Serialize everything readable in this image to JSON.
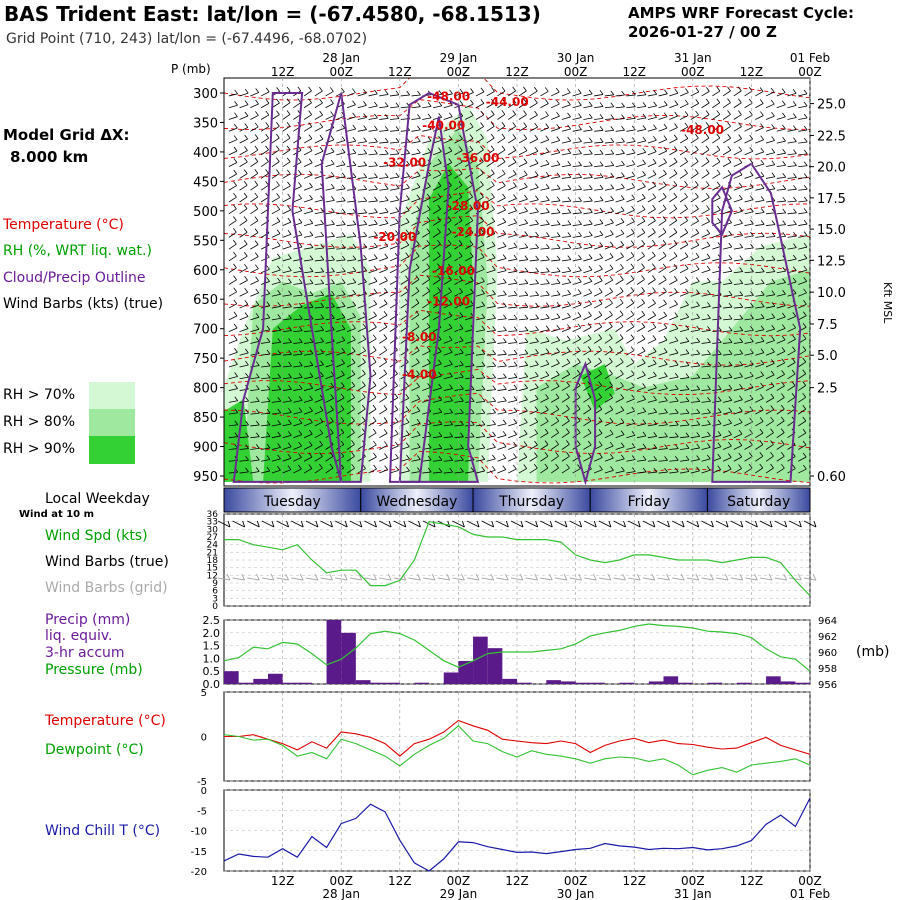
{
  "header": {
    "title": "BAS Trident East:  lat/lon = (-67.4580, -68.1513)",
    "grid_point": "Grid Point (710, 243) lat/lon = (-67.4496, -68.0702)",
    "cycle_line1": "AMPS WRF Forecast Cycle:",
    "cycle_line2": "2026-01-27 / 00  Z"
  },
  "left_panel": {
    "model_grid_label": "Model Grid ΔX:",
    "model_grid_value": "8.000 km",
    "legend": [
      {
        "text": "Temperature (°C)",
        "color": "#e00000"
      },
      {
        "text": "RH (%, WRT liq. wat.)",
        "color": "#00a000"
      },
      {
        "text": "Cloud/Precip Outline",
        "color": "#6a1b9a"
      },
      {
        "text": "Wind Barbs (kts) (true)",
        "color": "#000000"
      }
    ],
    "rh_legend": [
      {
        "text": "RH > 70%",
        "color": "#d4f7d4"
      },
      {
        "text": "RH > 80%",
        "color": "#9fe89f"
      },
      {
        "text": "RH > 90%",
        "color": "#33d133"
      }
    ],
    "weekday_title": "Local Weekday",
    "wind_at": "Wind at 10 m",
    "wind_labels": [
      {
        "text": "Wind Spd (kts)",
        "color": "#00a000"
      },
      {
        "text": "Wind Barbs (true)",
        "color": "#000000"
      },
      {
        "text": "Wind Barbs (grid)",
        "color": "#aaaaaa"
      }
    ],
    "precip_labels": [
      {
        "text": "Precip (mm)",
        "color": "#6a1b9a"
      },
      {
        "text": "liq. equiv.",
        "color": "#6a1b9a"
      },
      {
        "text": "3-hr accum",
        "color": "#6a1b9a"
      },
      {
        "text": "Pressure (mb)",
        "color": "#00a000"
      }
    ],
    "temp_labels": [
      {
        "text": "Temperature (°C)",
        "color": "#e00000"
      },
      {
        "text": "Dewpoint (°C)",
        "color": "#00a000"
      }
    ],
    "windchill_label": {
      "text": "Wind Chill T (°C)",
      "color": "#1a1aa8"
    }
  },
  "chart_data": [
    {
      "type": "heatmap",
      "name": "Vertical cross-section",
      "ylabel_left": "P (mb)",
      "ylabel_right": "Kft MSL",
      "pressure_ticks": [
        300,
        350,
        400,
        450,
        500,
        550,
        600,
        650,
        700,
        750,
        800,
        850,
        900,
        950
      ],
      "height_ticks": [
        "25.0",
        "22.5",
        "20.0",
        "17.5",
        "15.0",
        "12.5",
        "10.0",
        "7.5",
        "5.0",
        "2.5",
        "0.60"
      ],
      "height_tick_pressures": [
        318,
        372,
        425,
        478,
        531,
        584,
        638,
        692,
        745,
        800,
        950
      ],
      "x_top_hour_labels": [
        "12Z",
        "00Z",
        "12Z",
        "00Z",
        "12Z",
        "00Z",
        "12Z",
        "00Z",
        "12Z",
        "00Z"
      ],
      "x_top_hour_pos": [
        12,
        24,
        36,
        48,
        60,
        72,
        84,
        96,
        108,
        120
      ],
      "x_top_date_labels": [
        "28 Jan",
        "29 Jan",
        "30 Jan",
        "31 Jan",
        "01 Feb"
      ],
      "x_top_date_pos": [
        24,
        48,
        72,
        96,
        120
      ],
      "x_range_hours": [
        0,
        120
      ],
      "temperature_contour_labels": [
        {
          "text": "-48.00",
          "x": 46,
          "p": 306
        },
        {
          "text": "-44.00",
          "x": 58,
          "p": 315
        },
        {
          "text": "-40.00",
          "x": 45,
          "p": 355
        },
        {
          "text": "-48.00",
          "x": 98,
          "p": 363
        },
        {
          "text": "-32.00",
          "x": 37,
          "p": 418
        },
        {
          "text": "-36.00",
          "x": 52,
          "p": 410
        },
        {
          "text": "-28.00",
          "x": 50,
          "p": 492
        },
        {
          "text": "-24.00",
          "x": 51,
          "p": 536
        },
        {
          "text": "-20.00",
          "x": 35,
          "p": 544
        },
        {
          "text": "-16.00",
          "x": 47,
          "p": 602
        },
        {
          "text": "-12.00",
          "x": 46,
          "p": 654
        },
        {
          "text": "-8.00",
          "x": 40,
          "p": 714
        },
        {
          "text": "-4.00",
          "x": 40,
          "p": 778
        }
      ],
      "weekdays": [
        "Tuesday",
        "Wednesday",
        "Thursday",
        "Friday",
        "Saturday"
      ]
    },
    {
      "type": "line",
      "name": "10 m wind speed",
      "x_hours": [
        0,
        3,
        6,
        9,
        12,
        15,
        18,
        21,
        24,
        27,
        30,
        33,
        36,
        39,
        42,
        45,
        48,
        51,
        54,
        57,
        60,
        63,
        66,
        69,
        72,
        75,
        78,
        81,
        84,
        87,
        90,
        93,
        96,
        99,
        102,
        105,
        108,
        111,
        114,
        117,
        120
      ],
      "wind_speed_kts": [
        26,
        26,
        24,
        23,
        22,
        24,
        18,
        13,
        14,
        14,
        8,
        8,
        10,
        18,
        33,
        32,
        31,
        28,
        27,
        27,
        26,
        26,
        26,
        25,
        20,
        18,
        17,
        18,
        20,
        20,
        19,
        18,
        18,
        18,
        17,
        18,
        19,
        19,
        17,
        10,
        4
      ],
      "yticks": [
        0,
        3,
        6,
        9,
        12,
        15,
        18,
        21,
        24,
        27,
        30,
        33,
        36
      ],
      "ylim": [
        0,
        36
      ]
    },
    {
      "type": "bar",
      "name": "3-hr precip and pressure",
      "x_hours": [
        0,
        3,
        6,
        9,
        12,
        15,
        18,
        21,
        24,
        27,
        30,
        33,
        36,
        39,
        42,
        45,
        48,
        51,
        54,
        57,
        60,
        63,
        66,
        69,
        72,
        75,
        78,
        81,
        84,
        87,
        90,
        93,
        96,
        99,
        102,
        105,
        108,
        111,
        114,
        117
      ],
      "precip_mm": [
        0.5,
        0.05,
        0.2,
        0.4,
        0.05,
        0.05,
        0,
        2.5,
        2.0,
        0.15,
        0.05,
        0.05,
        0,
        0.05,
        0,
        0.45,
        0.9,
        1.85,
        1.4,
        0.2,
        0.05,
        0,
        0.15,
        0.1,
        0.05,
        0.05,
        0,
        0.05,
        0,
        0.1,
        0.3,
        0.05,
        0,
        0.05,
        0,
        0.05,
        0,
        0.3,
        0.1,
        0.05
      ],
      "pressure_mb": [
        958.9,
        959.3,
        960.6,
        960.4,
        961.2,
        961.0,
        959.8,
        958.4,
        959.1,
        960.5,
        962.3,
        962.6,
        962.3,
        961.5,
        960.2,
        958.9,
        958.1,
        958.9,
        959.8,
        960.0,
        960.0,
        960.0,
        960.2,
        960.4,
        961.0,
        962.0,
        962.4,
        962.7,
        963.2,
        963.5,
        963.3,
        963.2,
        963.0,
        962.6,
        962.5,
        962.3,
        961.8,
        960.4,
        959.4,
        959.1,
        957.6
      ],
      "pressure_x_hours": [
        0,
        3,
        6,
        9,
        12,
        15,
        18,
        21,
        24,
        27,
        30,
        33,
        36,
        39,
        42,
        45,
        48,
        51,
        54,
        57,
        60,
        63,
        66,
        69,
        72,
        75,
        78,
        81,
        84,
        87,
        90,
        93,
        96,
        99,
        102,
        105,
        108,
        111,
        114,
        117,
        120
      ],
      "precip_yticks": [
        "0.0",
        "0.5",
        "1.0",
        "1.5",
        "2.0",
        "2.5"
      ],
      "precip_ylim": [
        0,
        2.5
      ],
      "pressure_yticks": [
        956,
        958,
        960,
        962,
        964
      ],
      "pressure_ylim": [
        956,
        964
      ],
      "pressure_unit": "(mb)"
    },
    {
      "type": "line",
      "name": "Temperature and dewpoint",
      "x_hours": [
        0,
        3,
        6,
        9,
        12,
        15,
        18,
        21,
        24,
        27,
        30,
        33,
        36,
        39,
        42,
        45,
        48,
        51,
        54,
        57,
        60,
        63,
        66,
        69,
        72,
        75,
        78,
        81,
        84,
        87,
        90,
        93,
        96,
        99,
        102,
        105,
        108,
        111,
        114,
        117,
        120
      ],
      "temperature_c": [
        0,
        0,
        0.2,
        -0.3,
        -0.8,
        -1.5,
        -0.6,
        -1.3,
        0.5,
        0.3,
        -0.1,
        -0.8,
        -2.2,
        -0.8,
        -0.3,
        0.5,
        1.8,
        1.2,
        0.7,
        -0.3,
        -0.5,
        -0.7,
        -0.8,
        -0.5,
        -0.8,
        -1.8,
        -1.0,
        -0.5,
        -0.2,
        -0.7,
        -0.4,
        -0.8,
        -0.9,
        -1.2,
        -1.4,
        -1.3,
        -0.7,
        -0.1,
        -1.0,
        -1.5,
        -2.0
      ],
      "dewpoint_c": [
        0.2,
        0,
        -0.4,
        -0.3,
        -1.0,
        -2.2,
        -1.8,
        -2.5,
        -0.3,
        -0.8,
        -1.5,
        -2.2,
        -3.3,
        -2.0,
        -1.0,
        -0.2,
        1.2,
        -0.5,
        -0.8,
        -1.7,
        -2.3,
        -1.6,
        -2.0,
        -2.2,
        -2.5,
        -3.0,
        -2.5,
        -2.3,
        -2.4,
        -2.8,
        -2.5,
        -3.2,
        -4.3,
        -3.8,
        -3.5,
        -4.0,
        -3.2,
        -3.0,
        -2.8,
        -2.5,
        -3.2
      ],
      "yticks": [
        "-5",
        "0",
        "5"
      ],
      "ylim": [
        -5,
        5
      ]
    },
    {
      "type": "line",
      "name": "Wind chill",
      "x_hours": [
        0,
        3,
        6,
        9,
        12,
        15,
        18,
        21,
        24,
        27,
        30,
        33,
        36,
        39,
        42,
        45,
        48,
        51,
        54,
        57,
        60,
        63,
        66,
        69,
        72,
        75,
        78,
        81,
        84,
        87,
        90,
        93,
        96,
        99,
        102,
        105,
        108,
        111,
        114,
        117,
        120
      ],
      "wind_chill_c": [
        -17.5,
        -15.8,
        -16.4,
        -16.6,
        -14.5,
        -16.6,
        -11.5,
        -14.2,
        -8.3,
        -7.0,
        -3.5,
        -5.4,
        -12.4,
        -18.0,
        -20.0,
        -17.0,
        -12.8,
        -13.0,
        -14.0,
        -14.7,
        -15.4,
        -15.3,
        -15.7,
        -15.2,
        -14.7,
        -14.4,
        -13.2,
        -13.8,
        -14.1,
        -14.7,
        -14.4,
        -14.5,
        -14.2,
        -14.8,
        -14.5,
        -13.8,
        -12.5,
        -8.5,
        -6.2,
        -9.0,
        -2.0
      ],
      "yticks": [
        "-20",
        "-15",
        "-10",
        "-5",
        "0"
      ],
      "ylim": [
        -20,
        0
      ]
    }
  ],
  "bottom_axis": {
    "hour_labels": [
      "12Z",
      "00Z",
      "12Z",
      "00Z",
      "12Z",
      "00Z",
      "12Z",
      "00Z",
      "12Z",
      "00Z"
    ],
    "date_labels": [
      "28 Jan",
      "29 Jan",
      "30 Jan",
      "31 Jan",
      "01 Feb"
    ]
  },
  "colors": {
    "temperature": "#e00000",
    "rh70": "#d4f7d4",
    "rh80": "#9fe89f",
    "rh90": "#33d133",
    "cloud_outline": "#6a2c91",
    "precip": "#5a1a8a",
    "wind_speed": "#33c233",
    "wind_chill": "#1a1aa8",
    "grid": "#bbbbbb"
  }
}
